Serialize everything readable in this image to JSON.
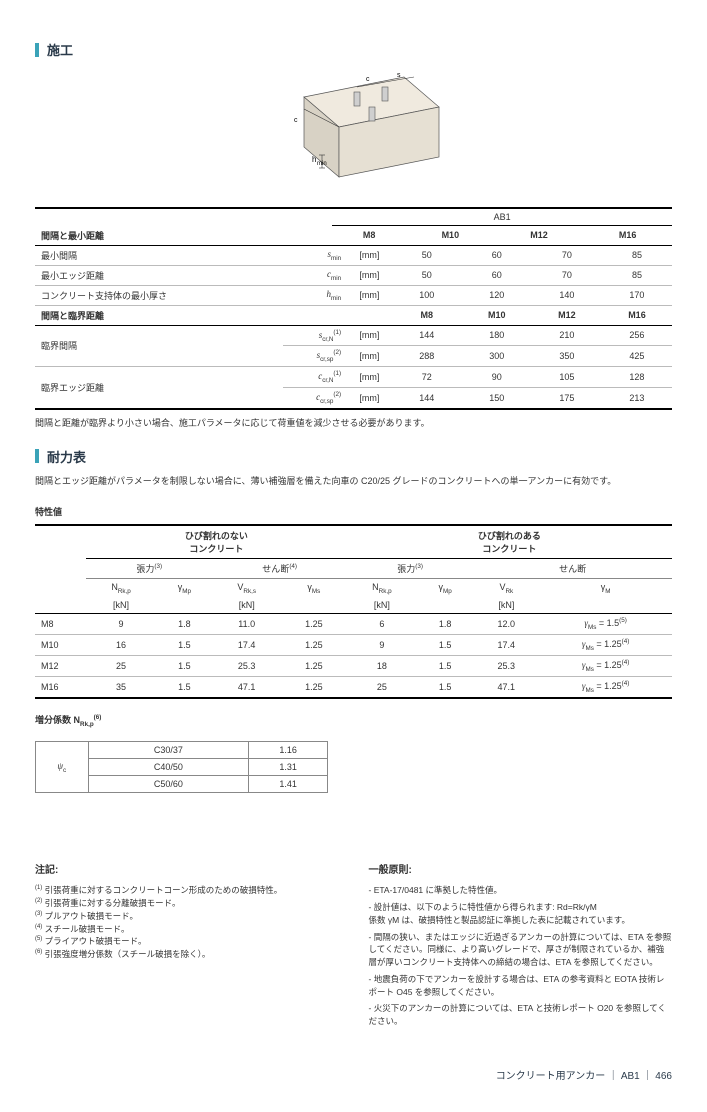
{
  "sections": {
    "install": "施工",
    "load": "耐力表"
  },
  "diagram_labels": {
    "c": "c",
    "s": "s",
    "b": "b",
    "h": "h",
    "hmin": "min"
  },
  "t1": {
    "group_title": "AB1",
    "cols": [
      "M8",
      "M10",
      "M12",
      "M16"
    ],
    "block1_title": "間隔と最小距離",
    "rows1": [
      {
        "label": "最小間隔",
        "sym": "s",
        "sub": "min",
        "unit": "[mm]",
        "v": [
          "50",
          "60",
          "70",
          "85"
        ]
      },
      {
        "label": "最小エッジ距離",
        "sym": "c",
        "sub": "min",
        "unit": "[mm]",
        "v": [
          "50",
          "60",
          "70",
          "85"
        ]
      },
      {
        "label": "コンクリート支持体の最小厚さ",
        "sym": "h",
        "sub": "min",
        "unit": "[mm]",
        "v": [
          "100",
          "120",
          "140",
          "170"
        ]
      }
    ],
    "block2_title": "間隔と臨界距離",
    "rows2a": [
      {
        "label": "臨界間隔",
        "sym": "s",
        "sub": "cr,N",
        "sup": "(1)",
        "unit": "[mm]",
        "v": [
          "144",
          "180",
          "210",
          "256"
        ]
      },
      {
        "label": "",
        "sym": "s",
        "sub": "cr,sp",
        "sup": "(2)",
        "unit": "[mm]",
        "v": [
          "288",
          "300",
          "350",
          "425"
        ]
      }
    ],
    "rows2b": [
      {
        "label": "臨界エッジ距離",
        "sym": "c",
        "sub": "cr,N",
        "sup": "(1)",
        "unit": "[mm]",
        "v": [
          "72",
          "90",
          "105",
          "128"
        ]
      },
      {
        "label": "",
        "sym": "c",
        "sub": "cr,sp",
        "sup": "(2)",
        "unit": "[mm]",
        "v": [
          "144",
          "150",
          "175",
          "213"
        ]
      }
    ],
    "foot": "間隔と距離が臨界より小さい場合、施工パラメータに応じて荷重値を減少させる必要があります。"
  },
  "load_intro": "間隔とエッジ距離がパラメータを制限しない場合に、薄い補強層を備えた向車の  C20/25  グレードのコンクリートへの単一アンカーに有効です。",
  "char_title": "特性値",
  "t2": {
    "top_groups": [
      "ひび割れのない\nコンクリート",
      "ひび割れのある\nコンクリート"
    ],
    "sub_groups": [
      "張力",
      "せん断",
      "張力",
      "せん断"
    ],
    "sub_sups": [
      "(3)",
      "(4)",
      "(3)",
      ""
    ],
    "col_syms": [
      {
        "s": "N",
        "sub": "Rk,p",
        "unit": "[kN]"
      },
      {
        "s": "γ",
        "sub": "Mp",
        "unit": ""
      },
      {
        "s": "V",
        "sub": "Rk,s",
        "unit": "[kN]"
      },
      {
        "s": "γ",
        "sub": "Ms",
        "unit": ""
      },
      {
        "s": "N",
        "sub": "Rk,p",
        "unit": "[kN]"
      },
      {
        "s": "γ",
        "sub": "Mp",
        "unit": ""
      },
      {
        "s": "V",
        "sub": "Rk",
        "unit": "[kN]"
      },
      {
        "s": "γ",
        "sub": "M",
        "unit": ""
      }
    ],
    "rows": [
      {
        "r": "M8",
        "v": [
          "9",
          "1.8",
          "11.0",
          "1.25",
          "6",
          "1.8",
          "12.0",
          "γ Ms = 1.5(5)"
        ]
      },
      {
        "r": "M10",
        "v": [
          "16",
          "1.5",
          "17.4",
          "1.25",
          "9",
          "1.5",
          "17.4",
          "γ Ms = 1.25(4)"
        ]
      },
      {
        "r": "M12",
        "v": [
          "25",
          "1.5",
          "25.3",
          "1.25",
          "18",
          "1.5",
          "25.3",
          "γ Ms = 1.25(4)"
        ]
      },
      {
        "r": "M16",
        "v": [
          "35",
          "1.5",
          "47.1",
          "1.25",
          "25",
          "1.5",
          "47.1",
          "γ Ms = 1.25(4)"
        ]
      }
    ]
  },
  "incr": {
    "title": "増分係数 N",
    "title_sub": "Rk,p",
    "title_sup": "(6)",
    "sym": "ψ",
    "sub": "c",
    "rows": [
      [
        "C30/37",
        "1.16"
      ],
      [
        "C40/50",
        "1.31"
      ],
      [
        "C50/60",
        "1.41"
      ]
    ]
  },
  "notes": {
    "title": "注記:",
    "items": [
      "引張荷重に対するコンクリートコーン形成のための破損特性。",
      "引張荷重に対する分離破損モード。",
      "プルアウト破損モード。",
      "スチール破損モード。",
      "プライアウト破損モード。",
      "引張強度増分係数（スチール破損を除く）。"
    ]
  },
  "general": {
    "title": "一般原則:",
    "items": [
      "ETA-17/0481 に準拠した特性値。",
      "設計値は、以下のように特性値から得られます: Rd=Rk/γM\n係数 γM は、破損特性と製品認証に準拠した表に記載されています。",
      "間隔の狭い、またはエッジに近過ぎるアンカーの計算については、ETA を参照してください。同様に、より高いグレードで、厚さが制限されているか、補強層が厚いコンクリート支持体への締結の場合は、ETA を参照してください。",
      "地震負荷の下でアンカーを設計する場合は、ETA の参考資料と EOTA 技術レポート O45 を参照してください。",
      "火災下のアンカーの計算については、ETA と技術レポート O20 を参照してください。"
    ]
  },
  "footer": "コンクリート用アンカー ｜ AB1 ｜ 466"
}
